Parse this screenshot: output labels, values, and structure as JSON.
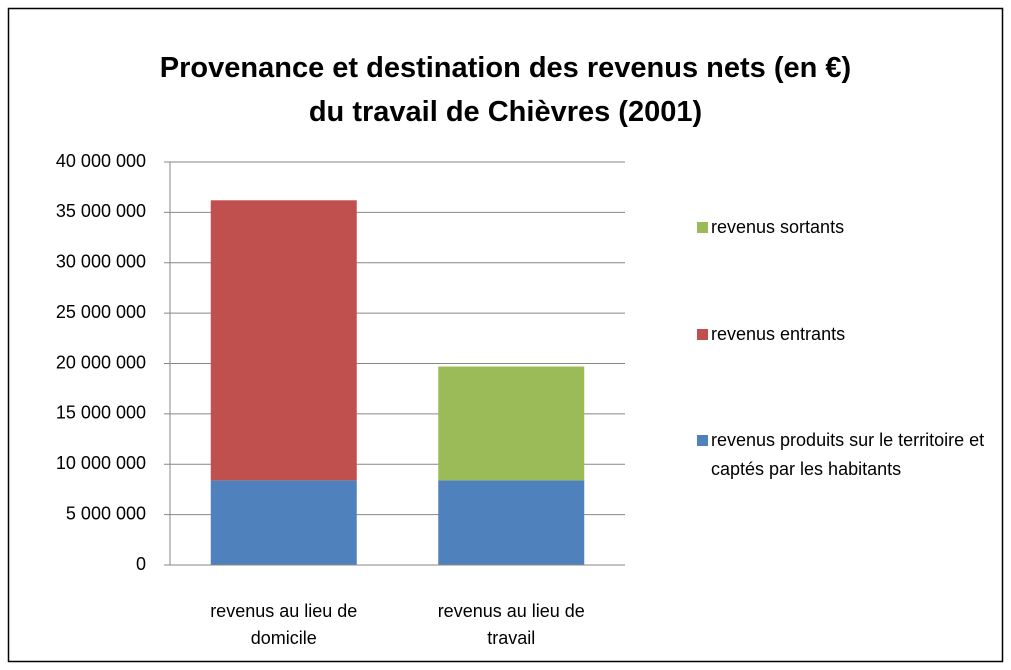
{
  "chart_data": {
    "type": "stacked_bar",
    "title": [
      "Provenance et destination des revenus nets (en €)",
      "du travail de Chièvres (2001)"
    ],
    "categories": [
      "revenus au lieu de domicile",
      "revenus au lieu de travail"
    ],
    "series": [
      {
        "name": "revenus produits sur le territoire et captés par les habitants",
        "color": "#4f81bd",
        "values": [
          8400000,
          8400000
        ]
      },
      {
        "name": "revenus entrants",
        "color": "#c0504d",
        "values": [
          27800000,
          null
        ]
      },
      {
        "name": "revenus sortants",
        "color": "#9bbb59",
        "values": [
          null,
          11300000
        ]
      }
    ],
    "ylim": [
      0,
      40000000
    ],
    "yticks": [
      0,
      {
        "value": 5000000,
        "label": "5 000 000"
      },
      {
        "value": 10000000,
        "label": "10 000 000"
      },
      {
        "value": 15000000,
        "label": "15 000 000"
      },
      {
        "value": 20000000,
        "label": "20 000 000"
      },
      {
        "value": 25000000,
        "label": "25 000 000"
      },
      {
        "value": 30000000,
        "label": "30 000 000"
      },
      {
        "value": 35000000,
        "label": "35 000 000"
      },
      {
        "value": 40000000,
        "label": "40 000 000"
      }
    ],
    "grid": true,
    "legend": "right"
  }
}
